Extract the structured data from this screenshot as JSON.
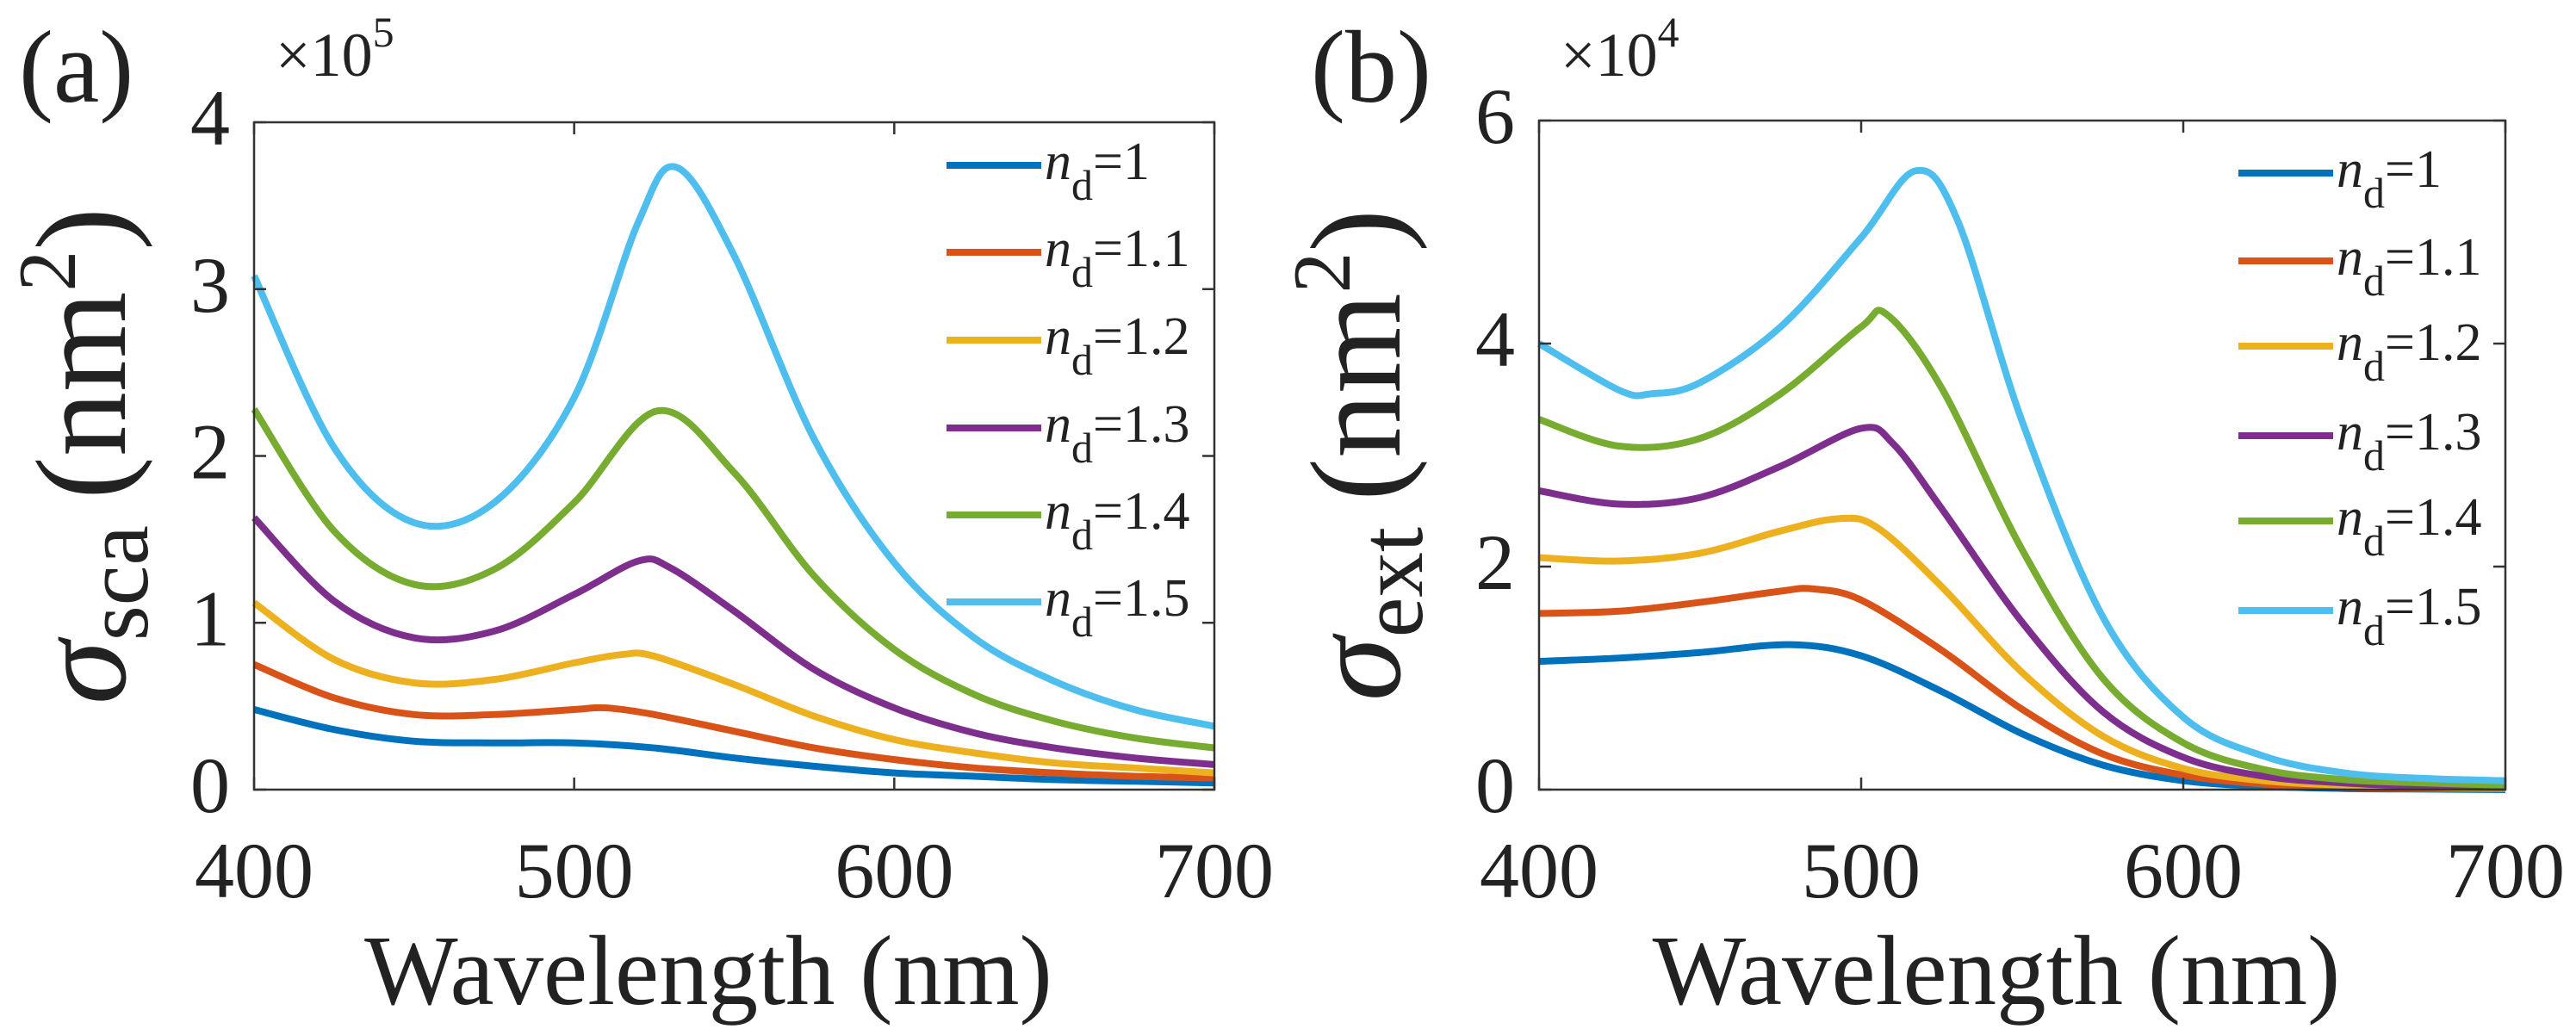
{
  "chart_data": [
    {
      "type": "line",
      "panel_label": "(a)",
      "multiplier": {
        "base": "×10",
        "exp": "5"
      },
      "xlabel": "Wavelength (nm)",
      "ylabel": {
        "symbol": "σ",
        "sub": "sca",
        "unit_open": "(nm",
        "unit_exp": "2",
        "unit_close": ")"
      },
      "xlim": [
        400,
        700
      ],
      "ylim": [
        0,
        4
      ],
      "xticks": [
        400,
        500,
        600,
        700
      ],
      "yticks": [
        0,
        1,
        2,
        3,
        4
      ],
      "xtick_labels": [
        "400",
        "500",
        "600",
        "700"
      ],
      "ytick_labels": [
        "0",
        "1",
        "2",
        "3",
        "4"
      ],
      "legend_position": "top-right",
      "series": [
        {
          "name_var": "n",
          "name_sub": "d",
          "name_val": "=1",
          "color": "#0072BD",
          "x": [
            400,
            425,
            450,
            475,
            500,
            525,
            550,
            575,
            600,
            625,
            650,
            675,
            700
          ],
          "y": [
            0.48,
            0.36,
            0.29,
            0.28,
            0.28,
            0.25,
            0.19,
            0.14,
            0.1,
            0.08,
            0.06,
            0.05,
            0.04
          ]
        },
        {
          "name_var": "n",
          "name_sub": "d",
          "name_val": "=1.1",
          "color": "#D95319",
          "x": [
            400,
            425,
            450,
            475,
            500,
            510,
            525,
            550,
            575,
            600,
            625,
            650,
            675,
            700
          ],
          "y": [
            0.75,
            0.55,
            0.45,
            0.45,
            0.48,
            0.49,
            0.45,
            0.35,
            0.25,
            0.18,
            0.13,
            0.1,
            0.08,
            0.07
          ]
        },
        {
          "name_var": "n",
          "name_sub": "d",
          "name_val": "=1.2",
          "color": "#EDB120",
          "x": [
            400,
            425,
            450,
            475,
            500,
            515,
            525,
            550,
            575,
            600,
            625,
            650,
            675,
            700
          ],
          "y": [
            1.12,
            0.78,
            0.64,
            0.66,
            0.76,
            0.81,
            0.8,
            0.63,
            0.44,
            0.3,
            0.22,
            0.16,
            0.13,
            0.1
          ]
        },
        {
          "name_var": "n",
          "name_sub": "d",
          "name_val": "=1.3",
          "color": "#7E2F8E",
          "x": [
            400,
            425,
            450,
            475,
            500,
            520,
            530,
            550,
            575,
            600,
            625,
            650,
            675,
            700
          ],
          "y": [
            1.63,
            1.13,
            0.91,
            0.95,
            1.17,
            1.37,
            1.33,
            1.07,
            0.72,
            0.49,
            0.34,
            0.25,
            0.19,
            0.15
          ]
        },
        {
          "name_var": "n",
          "name_sub": "d",
          "name_val": "=1.4",
          "color": "#77AC30",
          "x": [
            400,
            425,
            450,
            475,
            500,
            526,
            550,
            575,
            600,
            625,
            650,
            675,
            700
          ],
          "y": [
            2.28,
            1.55,
            1.23,
            1.32,
            1.72,
            2.27,
            1.9,
            1.28,
            0.84,
            0.57,
            0.41,
            0.31,
            0.25
          ]
        },
        {
          "name_var": "n",
          "name_sub": "d",
          "name_val": "=1.5",
          "color": "#4DBEEE",
          "x": [
            400,
            425,
            450,
            475,
            500,
            520,
            532,
            550,
            575,
            600,
            625,
            650,
            675,
            700
          ],
          "y": [
            3.08,
            2.05,
            1.6,
            1.72,
            2.35,
            3.4,
            3.73,
            3.2,
            2.1,
            1.36,
            0.91,
            0.65,
            0.48,
            0.38
          ]
        }
      ]
    },
    {
      "type": "line",
      "panel_label": "(b)",
      "multiplier": {
        "base": "×10",
        "exp": "4"
      },
      "xlabel": "Wavelength (nm)",
      "ylabel": {
        "symbol": "σ",
        "sub": "ext",
        "unit_open": "(nm",
        "unit_exp": "2",
        "unit_close": ")"
      },
      "xlim": [
        400,
        700
      ],
      "ylim": [
        0,
        6
      ],
      "xticks": [
        400,
        500,
        600,
        700
      ],
      "yticks": [
        0,
        2,
        4,
        6
      ],
      "xtick_labels": [
        "400",
        "500",
        "600",
        "700"
      ],
      "ytick_labels": [
        "0",
        "2",
        "4",
        "6"
      ],
      "legend_position": "top-right",
      "series": [
        {
          "name_var": "n",
          "name_sub": "d",
          "name_val": "=1",
          "color": "#0072BD",
          "x": [
            400,
            425,
            450,
            478,
            500,
            525,
            550,
            575,
            600,
            625,
            650,
            675,
            700
          ],
          "y": [
            1.15,
            1.18,
            1.23,
            1.3,
            1.2,
            0.88,
            0.5,
            0.22,
            0.08,
            0.03,
            0.01,
            0.005,
            0.0
          ]
        },
        {
          "name_var": "n",
          "name_sub": "d",
          "name_val": "=1.1",
          "color": "#D95319",
          "x": [
            400,
            425,
            450,
            475,
            485,
            500,
            525,
            550,
            575,
            600,
            625,
            650,
            675,
            700
          ],
          "y": [
            1.58,
            1.6,
            1.68,
            1.78,
            1.8,
            1.7,
            1.25,
            0.72,
            0.32,
            0.13,
            0.05,
            0.02,
            0.01,
            0.01
          ]
        },
        {
          "name_var": "n",
          "name_sub": "d",
          "name_val": "=1.2",
          "color": "#EDB120",
          "x": [
            400,
            425,
            450,
            475,
            493,
            505,
            525,
            550,
            575,
            600,
            625,
            650,
            675,
            700
          ],
          "y": [
            2.08,
            2.05,
            2.12,
            2.32,
            2.43,
            2.35,
            1.82,
            1.05,
            0.48,
            0.19,
            0.08,
            0.04,
            0.02,
            0.01
          ]
        },
        {
          "name_var": "n",
          "name_sub": "d",
          "name_val": "=1.3",
          "color": "#7E2F8E",
          "x": [
            400,
            425,
            450,
            475,
            500,
            510,
            525,
            550,
            575,
            600,
            625,
            650,
            675,
            700
          ],
          "y": [
            2.68,
            2.56,
            2.62,
            2.9,
            3.24,
            3.1,
            2.52,
            1.5,
            0.7,
            0.29,
            0.12,
            0.06,
            0.03,
            0.02
          ]
        },
        {
          "name_var": "n",
          "name_sub": "d",
          "name_val": "=1.4",
          "color": "#77AC30",
          "x": [
            400,
            425,
            450,
            475,
            500,
            508,
            525,
            550,
            575,
            600,
            625,
            650,
            675,
            700
          ],
          "y": [
            3.32,
            3.08,
            3.15,
            3.55,
            4.15,
            4.26,
            3.6,
            2.15,
            1.0,
            0.42,
            0.18,
            0.09,
            0.06,
            0.04
          ]
        },
        {
          "name_var": "n",
          "name_sub": "d",
          "name_val": "=1.5",
          "color": "#4DBEEE",
          "x": [
            400,
            425,
            435,
            450,
            475,
            500,
            517,
            530,
            550,
            575,
            600,
            625,
            650,
            675,
            700
          ],
          "y": [
            4.0,
            3.58,
            3.55,
            3.65,
            4.15,
            4.95,
            5.55,
            5.1,
            3.3,
            1.55,
            0.65,
            0.3,
            0.15,
            0.1,
            0.08
          ]
        }
      ]
    }
  ]
}
